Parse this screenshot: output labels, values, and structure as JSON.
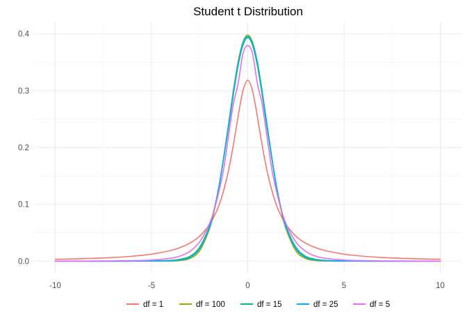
{
  "chart_data": {
    "type": "line",
    "title": "Student t Distribution",
    "xlabel": "",
    "ylabel": "",
    "xlim": [
      -10,
      10
    ],
    "ylim": [
      0,
      0.4
    ],
    "x_ticks": [
      -10,
      -5,
      0,
      5,
      10
    ],
    "x_tick_labels": [
      "-10",
      "-5",
      "0",
      "5",
      "10"
    ],
    "y_ticks": [
      0.0,
      0.1,
      0.2,
      0.3,
      0.4
    ],
    "y_tick_labels": [
      "0.0",
      "0.1",
      "0.2",
      "0.3",
      "0.4"
    ],
    "grid": true,
    "legend_position": "bottom",
    "x": [
      -10,
      -9,
      -8,
      -7,
      -6,
      -5,
      -4,
      -3.5,
      -3,
      -2.5,
      -2,
      -1.75,
      -1.5,
      -1.25,
      -1,
      -0.75,
      -0.5,
      -0.25,
      0,
      0.25,
      0.5,
      0.75,
      1,
      1.25,
      1.5,
      1.75,
      2,
      2.5,
      3,
      3.5,
      4,
      5,
      6,
      7,
      8,
      9,
      10
    ],
    "series": [
      {
        "name": "df = 1",
        "color": "#F8766D",
        "values": [
          0.0032,
          0.0039,
          0.0049,
          0.0064,
          0.0086,
          0.0122,
          0.0187,
          0.0241,
          0.0318,
          0.0439,
          0.0637,
          0.0786,
          0.0979,
          0.1248,
          0.1592,
          0.2037,
          0.2546,
          0.2996,
          0.3183,
          0.2996,
          0.2546,
          0.2037,
          0.1592,
          0.1248,
          0.0979,
          0.0786,
          0.0637,
          0.0439,
          0.0318,
          0.0241,
          0.0187,
          0.0122,
          0.0086,
          0.0064,
          0.0049,
          0.0039,
          0.0032
        ]
      },
      {
        "name": "df = 100",
        "color": "#A3A500",
        "values": [
          0.0,
          0.0,
          0.0,
          0.0,
          0.0,
          0.0,
          0.0002,
          0.001,
          0.0048,
          0.018,
          0.0553,
          0.0871,
          0.1303,
          0.183,
          0.241,
          0.2998,
          0.351,
          0.3855,
          0.3979,
          0.3855,
          0.351,
          0.2998,
          0.241,
          0.183,
          0.1303,
          0.0871,
          0.0553,
          0.018,
          0.0048,
          0.001,
          0.0002,
          0.0,
          0.0,
          0.0,
          0.0,
          0.0,
          0.0
        ]
      },
      {
        "name": "df = 15",
        "color": "#00BF7D",
        "values": [
          0.0,
          0.0,
          0.0,
          0.0,
          0.0001,
          0.0003,
          0.0013,
          0.0034,
          0.0085,
          0.0244,
          0.0605,
          0.0903,
          0.1307,
          0.1808,
          0.236,
          0.2929,
          0.3443,
          0.3801,
          0.3933,
          0.3801,
          0.3443,
          0.2929,
          0.236,
          0.1808,
          0.1307,
          0.0903,
          0.0605,
          0.0244,
          0.0085,
          0.0034,
          0.0013,
          0.0003,
          0.0001,
          0.0,
          0.0,
          0.0,
          0.0
        ]
      },
      {
        "name": "df = 25",
        "color": "#00B0F6",
        "values": [
          0.0,
          0.0,
          0.0,
          0.0,
          0.0,
          0.0001,
          0.0007,
          0.0022,
          0.0067,
          0.0219,
          0.0584,
          0.0889,
          0.1303,
          0.1815,
          0.2385,
          0.2966,
          0.3483,
          0.3834,
          0.3955,
          0.3834,
          0.3483,
          0.2966,
          0.2385,
          0.1815,
          0.1303,
          0.0889,
          0.0584,
          0.0219,
          0.0067,
          0.0022,
          0.0007,
          0.0001,
          0.0,
          0.0,
          0.0,
          0.0,
          0.0
        ]
      },
      {
        "name": "df = 5",
        "color": "#E76BF3",
        "values": [
          0.0,
          0.0001,
          0.0002,
          0.0004,
          0.0009,
          0.0018,
          0.0051,
          0.009,
          0.0173,
          0.0336,
          0.0651,
          0.0892,
          0.1222,
          0.1624,
          0.2197,
          0.2762,
          0.3125,
          0.3652,
          0.3796,
          0.3652,
          0.3125,
          0.2762,
          0.2197,
          0.1624,
          0.1222,
          0.0892,
          0.0651,
          0.0336,
          0.0173,
          0.009,
          0.0051,
          0.0018,
          0.0009,
          0.0004,
          0.0002,
          0.0001,
          0.0
        ]
      }
    ]
  }
}
